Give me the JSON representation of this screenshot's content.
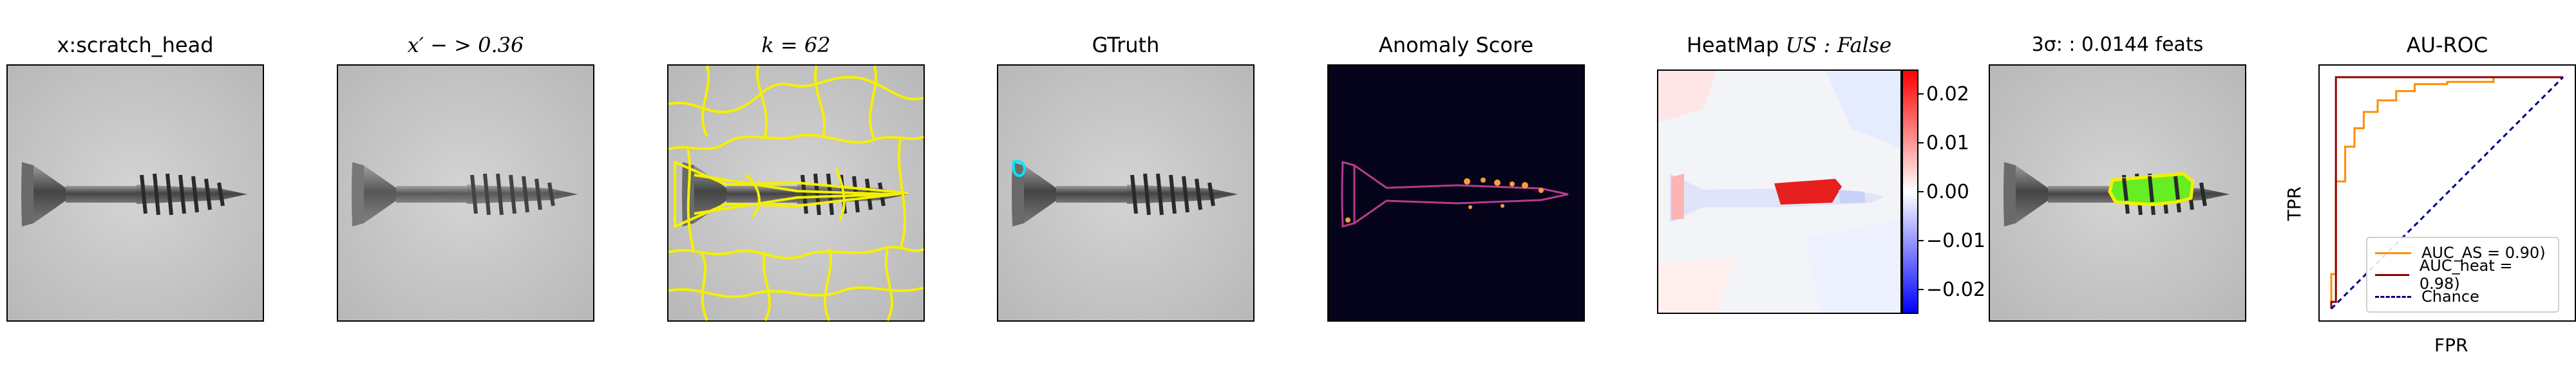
{
  "panels": [
    {
      "title_plain": "x:scratch_head"
    },
    {
      "title_math": "x′ − > 0.36"
    },
    {
      "title_math": "k = 62"
    },
    {
      "title_plain": "GTruth"
    },
    {
      "title_plain": "Anomaly Score"
    },
    {
      "title_plain": "HeatMap ",
      "title_math": "US : False"
    },
    {
      "title_plain": "3σ: : 0.0144 feats"
    },
    {
      "title_plain": "AU-ROC"
    }
  ],
  "colorbar": {
    "ticks": [
      "0.02",
      "0.01",
      "0.00",
      "−0.01",
      "−0.02"
    ],
    "tick_values": [
      0.02,
      0.01,
      0.0,
      -0.01,
      -0.02
    ],
    "range": [
      -0.025,
      0.025
    ],
    "colormap": "bwr"
  },
  "chart_data": {
    "type": "line",
    "title": "AU-ROC",
    "xlabel": "FPR",
    "ylabel": "TPR",
    "xlim": [
      0,
      1
    ],
    "ylim": [
      0,
      1
    ],
    "series": [
      {
        "name": "AUC_AS = 0.90)",
        "color": "#ff8c00",
        "x": [
          0,
          0.0,
          0.02,
          0.02,
          0.06,
          0.06,
          0.1,
          0.1,
          0.14,
          0.14,
          0.2,
          0.2,
          0.28,
          0.28,
          0.36,
          0.36,
          0.5,
          0.5,
          0.7,
          0.7,
          1.0
        ],
        "y": [
          0,
          0.15,
          0.15,
          0.55,
          0.55,
          0.7,
          0.7,
          0.78,
          0.78,
          0.85,
          0.85,
          0.9,
          0.9,
          0.94,
          0.94,
          0.97,
          0.97,
          0.98,
          0.98,
          1.0,
          1.0
        ]
      },
      {
        "name": "AUC_heat = 0.98)",
        "color": "#8b0000",
        "x": [
          0,
          0.0,
          0.02,
          0.02,
          1.0
        ],
        "y": [
          0,
          0.03,
          0.03,
          1.0,
          1.0
        ]
      },
      {
        "name": "Chance",
        "color": "#000080",
        "dashed": true,
        "x": [
          0,
          1
        ],
        "y": [
          0,
          1
        ]
      }
    ]
  }
}
